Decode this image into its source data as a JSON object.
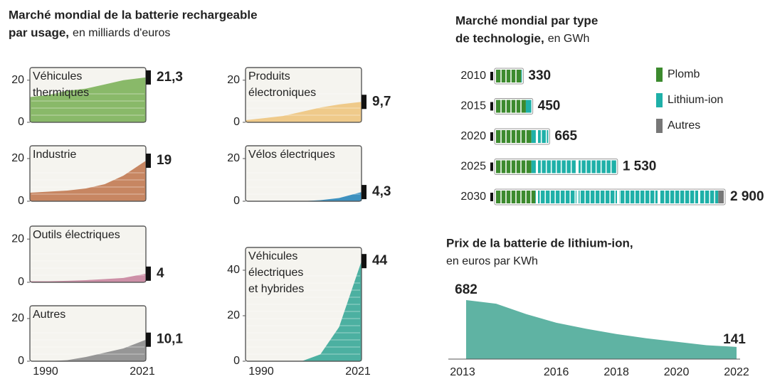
{
  "chart_data": [
    {
      "type": "area-multiples",
      "title": [
        "Marché mondial de la batterie rechargeable",
        "par usage,"
      ],
      "subtitle": "en milliards d'euros",
      "x": [
        1990,
        1995,
        2000,
        2005,
        2010,
        2015,
        2021
      ],
      "xlim": [
        1990,
        2021
      ],
      "xticks": [
        1990,
        2021
      ],
      "panels": [
        {
          "label": [
            "Véhicules",
            "thermiques"
          ],
          "color": "#7db35a",
          "ylim": [
            0,
            26
          ],
          "yticks": [
            0,
            20
          ],
          "values": [
            12,
            13,
            15,
            16,
            18,
            20,
            21.3
          ],
          "end_label": "21,3"
        },
        {
          "label": [
            "Produits",
            "électroniques"
          ],
          "color": "#eec57e",
          "ylim": [
            0,
            26
          ],
          "yticks": [
            0,
            20
          ],
          "values": [
            1,
            2,
            3,
            5,
            7,
            8.5,
            9.7
          ],
          "end_label": "9,7"
        },
        {
          "label": [
            "Industrie"
          ],
          "color": "#c27a52",
          "ylim": [
            0,
            26
          ],
          "yticks": [
            0,
            20
          ],
          "values": [
            4,
            4.5,
            5,
            6,
            8,
            12,
            19
          ],
          "end_label": "19"
        },
        {
          "label": [
            "Vélos électriques"
          ],
          "color": "#2a86b9",
          "ylim": [
            0,
            26
          ],
          "yticks": [
            0,
            20
          ],
          "values": [
            0,
            0,
            0,
            0,
            0.5,
            1.5,
            4.3
          ],
          "end_label": "4,3"
        },
        {
          "label": [
            "Outils électriques"
          ],
          "color": "#c9859f",
          "ylim": [
            0,
            26
          ],
          "yticks": [
            0,
            20
          ],
          "values": [
            0.5,
            0.5,
            0.7,
            1,
            1.5,
            2,
            4
          ],
          "end_label": "4"
        },
        {
          "label": [
            "Véhicules",
            "électriques",
            "et hybrides"
          ],
          "color": "#3aa898",
          "ylim": [
            0,
            50
          ],
          "yticks": [
            0,
            20,
            40
          ],
          "values": [
            0,
            0,
            0,
            0,
            3,
            15,
            44
          ],
          "end_label": "44"
        },
        {
          "label": [
            "Autres"
          ],
          "color": "#8c8c8c",
          "ylim": [
            0,
            26
          ],
          "yticks": [
            0,
            20
          ],
          "values": [
            0,
            0,
            0.5,
            2,
            4,
            6,
            10.1
          ],
          "end_label": "10,1"
        }
      ]
    },
    {
      "type": "battery-bar",
      "title": [
        "Marché mondial par type",
        "de technologie,"
      ],
      "subtitle": "en GWh",
      "categories": [
        2010,
        2015,
        2020,
        2025,
        2030
      ],
      "series": [
        {
          "name": "Plomb",
          "color": "#3c8a2e",
          "values": [
            320,
            380,
            450,
            450,
            500
          ]
        },
        {
          "name": "Lithium-ion",
          "color": "#1fb0a8",
          "values": [
            10,
            70,
            215,
            1080,
            2330
          ]
        },
        {
          "name": "Autres",
          "color": "#777777",
          "values": [
            0,
            0,
            0,
            0,
            70
          ]
        }
      ],
      "totals": [
        330,
        450,
        665,
        1530,
        2900
      ],
      "total_labels": [
        "330",
        "450",
        "665",
        "1 530",
        "2 900"
      ]
    },
    {
      "type": "area",
      "title": "Prix de la batterie de lithium-ion,",
      "subtitle": "en euros par KWh",
      "color": "#5fb3a3",
      "x": [
        2013,
        2014,
        2015,
        2016,
        2017,
        2018,
        2019,
        2020,
        2021,
        2022
      ],
      "values": [
        682,
        640,
        520,
        420,
        350,
        290,
        240,
        200,
        160,
        141
      ],
      "xlim": [
        2013,
        2022
      ],
      "xticks": [
        2013,
        2016,
        2018,
        2020,
        2022
      ]
    }
  ]
}
